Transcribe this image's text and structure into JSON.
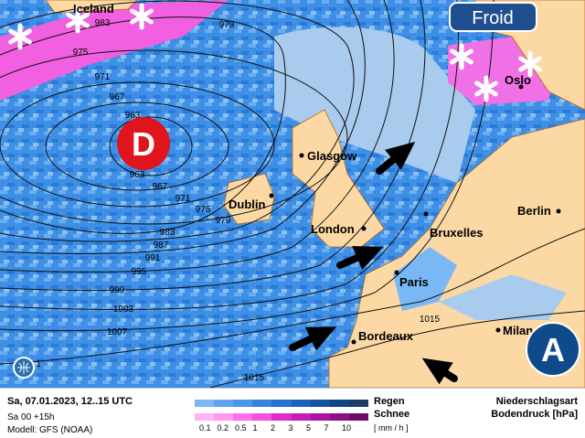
{
  "badge": {
    "label": "Froid",
    "color": "#1f4f8f"
  },
  "low": {
    "letter": "D",
    "color": "#e0141c"
  },
  "high": {
    "letter": "A",
    "color": "#0f4a8a"
  },
  "place_labels": {
    "iceland": "Iceland",
    "glasgow": "Glasgow",
    "dublin": "Dublin",
    "london": "London",
    "bruxelles": "Bruxelles",
    "paris": "Paris",
    "bordeaux": "Bordeaux",
    "berlin": "Berlin",
    "milan": "Milan",
    "oslo": "Oslo"
  },
  "isobar_labels": [
    "963",
    "963",
    "967",
    "967",
    "971",
    "971",
    "975",
    "975",
    "979",
    "979",
    "983",
    "983",
    "987",
    "991",
    "995",
    "999",
    "1003",
    "1007",
    "1",
    "1015",
    "1015"
  ],
  "icons": [
    "snowflake-icon",
    "wind-arrow-icon",
    "globe-icon"
  ],
  "legend": {
    "date": "Sa, 07.01.2023, 12..15 UTC",
    "run": "Sa 00 +15h",
    "model": "Modell: GFS (NOAA)",
    "rain_label": "Regen",
    "snow_label": "Schnee",
    "unit": "[ mm / h ]",
    "ticks": [
      "0.1",
      "0.2",
      "0.5",
      "1",
      "2",
      "3",
      "5",
      "7",
      "10"
    ],
    "rain_colors": [
      "#7ab8f5",
      "#5fa5ef",
      "#4a96ea",
      "#3585e0",
      "#2272d0",
      "#1a62bd",
      "#14539f",
      "#0f4686",
      "#1a3b66"
    ],
    "snow_colors": [
      "#ffb3f5",
      "#ff99f0",
      "#ff70ea",
      "#f552e0",
      "#e02ad0",
      "#c41cb8",
      "#a8149e",
      "#8c0f86",
      "#6e0b68"
    ],
    "type_label": "Niederschlagsart",
    "pressure_label": "Bodendruck [hPa]"
  }
}
